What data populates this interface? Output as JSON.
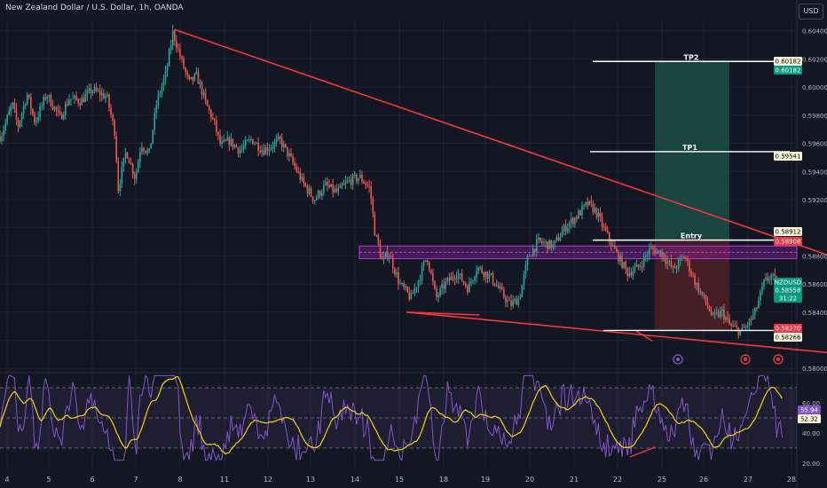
{
  "header": {
    "title": "New Zealand Dollar / U.S. Dollar, 1h, OANDA",
    "currency": "USD"
  },
  "colors": {
    "background": "#131722",
    "up": "#26a69a",
    "down": "#ef5350",
    "trendline": "#f23645",
    "zone": "#9c27b0",
    "take_profit_zone": "#1b4d44",
    "stop_loss_zone": "#4a1f26",
    "rsi": "#7e57c2",
    "rsi_ma": "#e8d800",
    "level_line": "#ffffff"
  },
  "price_axis": {
    "labels": [
      "0.60400",
      "0.60200",
      "0.60000",
      "0.59800",
      "0.59600",
      "0.59400",
      "0.59200",
      "0.58800",
      "0.58600",
      "0.58400",
      "0.58000"
    ],
    "min": 0.5797,
    "max": 0.6048
  },
  "time_axis": {
    "labels": [
      "4",
      "5",
      "6",
      "7",
      "8",
      "11",
      "12",
      "13",
      "14",
      "15",
      "18",
      "19",
      "20",
      "21",
      "22",
      "25",
      "26",
      "27",
      "28"
    ]
  },
  "levels": {
    "tp2": {
      "label": "TP2",
      "price": 0.60182
    },
    "tp1": {
      "label": "TP1",
      "price": 0.59541
    },
    "entry": {
      "label": "Entry",
      "price": 0.58912
    },
    "stop": {
      "price": 0.5827
    }
  },
  "price_badges": [
    {
      "text": "0.60182",
      "bg": "#ffffe0",
      "fg": "#000000"
    },
    {
      "text": "0.60182",
      "bg": "#089981",
      "fg": "#ffffff"
    },
    {
      "text": "0.59541",
      "bg": "#ffffe0",
      "fg": "#000000"
    },
    {
      "text": "0.58912",
      "bg": "#ffffe0",
      "fg": "#000000"
    },
    {
      "text": "0.58908",
      "bg": "#f23645",
      "fg": "#ffffff"
    },
    {
      "text": "NZDUSD",
      "bg": "#089981",
      "fg": "#ffffff"
    },
    {
      "text": "0.58558",
      "bg": "#089981",
      "fg": "#ffffff"
    },
    {
      "text": "31:22",
      "bg": "#089981",
      "fg": "#ffffff"
    },
    {
      "text": "0.58270",
      "bg": "#f23645",
      "fg": "#ffffff"
    },
    {
      "text": "0.58266",
      "bg": "#ffffe0",
      "fg": "#000000"
    }
  ],
  "chart_data": {
    "type": "candlestick",
    "symbol": "NZDUSD",
    "interval": "1h",
    "last_price": 0.58558,
    "countdown": "31:22",
    "x_tick_labels": [
      "4",
      "5",
      "6",
      "7",
      "8",
      "11",
      "12",
      "13",
      "14",
      "15",
      "18",
      "19",
      "20",
      "21",
      "22",
      "25",
      "26",
      "27",
      "28"
    ],
    "ylim": [
      0.5797,
      0.6048
    ],
    "price_path": [
      [
        0,
        0.5965
      ],
      [
        1,
        0.5988
      ],
      [
        1.5,
        0.5972
      ],
      [
        2.3,
        0.5995
      ],
      [
        3,
        0.5975
      ],
      [
        4,
        0.5995
      ],
      [
        5.2,
        0.5978
      ],
      [
        6,
        0.5992
      ],
      [
        7,
        0.599
      ],
      [
        8,
        0.5998
      ],
      [
        9.3,
        0.5993
      ],
      [
        10,
        0.5968
      ],
      [
        10.3,
        0.5928
      ],
      [
        11,
        0.5955
      ],
      [
        11.8,
        0.5935
      ],
      [
        12.3,
        0.596
      ],
      [
        13,
        0.5952
      ],
      [
        13.7,
        0.599
      ],
      [
        14.5,
        0.601
      ],
      [
        15.1,
        0.6039
      ],
      [
        15.8,
        0.602
      ],
      [
        16.5,
        0.6003
      ],
      [
        17.2,
        0.6008
      ],
      [
        18,
        0.5988
      ],
      [
        18.7,
        0.5975
      ],
      [
        19.3,
        0.5958
      ],
      [
        20,
        0.5962
      ],
      [
        21,
        0.5955
      ],
      [
        22,
        0.5963
      ],
      [
        23,
        0.5955
      ],
      [
        24.5,
        0.5962
      ],
      [
        25.5,
        0.5948
      ],
      [
        26.5,
        0.5932
      ],
      [
        27.5,
        0.592
      ],
      [
        28.5,
        0.593
      ],
      [
        29.5,
        0.5925
      ],
      [
        30.5,
        0.5933
      ],
      [
        31.5,
        0.5936
      ],
      [
        32.4,
        0.5928
      ],
      [
        32.8,
        0.5898
      ],
      [
        33.5,
        0.5875
      ],
      [
        34,
        0.5883
      ],
      [
        35,
        0.586
      ],
      [
        36,
        0.585
      ],
      [
        36.8,
        0.5866
      ],
      [
        37.4,
        0.588
      ],
      [
        38.2,
        0.585
      ],
      [
        39,
        0.586
      ],
      [
        40,
        0.5868
      ],
      [
        41,
        0.5857
      ],
      [
        41.8,
        0.5872
      ],
      [
        43,
        0.5865
      ],
      [
        44,
        0.5853
      ],
      [
        44.7,
        0.5845
      ],
      [
        45.5,
        0.585
      ],
      [
        46.3,
        0.588
      ],
      [
        47.2,
        0.589
      ],
      [
        48.5,
        0.5887
      ],
      [
        49.5,
        0.59
      ],
      [
        50.5,
        0.5908
      ],
      [
        51.5,
        0.5917
      ],
      [
        52.2,
        0.5912
      ],
      [
        53,
        0.5898
      ],
      [
        53.8,
        0.5885
      ],
      [
        55,
        0.5868
      ],
      [
        56,
        0.5872
      ],
      [
        57,
        0.5885
      ],
      [
        58,
        0.5882
      ],
      [
        59,
        0.587
      ],
      [
        60,
        0.588
      ],
      [
        61,
        0.586
      ],
      [
        62,
        0.5845
      ],
      [
        62.5,
        0.5836
      ],
      [
        63.3,
        0.584
      ],
      [
        64,
        0.583
      ],
      [
        65,
        0.5826
      ],
      [
        65.7,
        0.5833
      ],
      [
        66.2,
        0.584
      ],
      [
        67,
        0.5861
      ],
      [
        67.6,
        0.5866
      ],
      [
        68.3,
        0.5858
      ],
      [
        68.7,
        0.5855
      ]
    ],
    "trendlines": [
      {
        "name": "upper resistance",
        "from": {
          "x": 15.2,
          "y": 0.6041
        },
        "to": {
          "x": 87.8,
          "y": 0.5838
        }
      },
      {
        "name": "lower support",
        "from": {
          "x": 35.6,
          "y": 0.584
        },
        "to": {
          "x": 87.0,
          "y": 0.58
        }
      },
      {
        "name": "left support",
        "from": {
          "x": 35.6,
          "y": 0.584
        },
        "to": {
          "x": 42.0,
          "y": 0.5838
        }
      }
    ],
    "resistance_zone": {
      "from_price": 0.5878,
      "to_price": 0.5887
    },
    "trade_setup": {
      "entry": 0.58912,
      "tp1": 0.59541,
      "tp2": 0.60182,
      "stop_loss": 0.5827,
      "stop_badge_2": 0.58266
    },
    "indicator": {
      "name": "RSI",
      "ylim": [
        20,
        80
      ],
      "tick_labels": [
        "60.00",
        "40.00",
        "20.00"
      ],
      "values_shown": [
        55.94,
        52.32
      ],
      "bands": [
        70,
        30
      ]
    }
  }
}
